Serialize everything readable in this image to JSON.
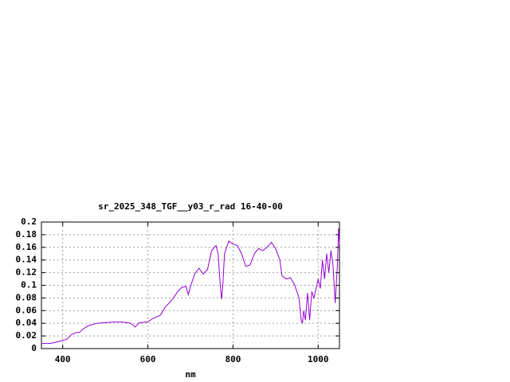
{
  "chart_data": {
    "type": "line",
    "title": "sr_2025_348_TGF__y03_r_rad 16-40-00",
    "xlabel": "nm",
    "x": [
      350,
      370,
      390,
      410,
      420,
      430,
      440,
      450,
      460,
      480,
      500,
      520,
      540,
      560,
      570,
      580,
      600,
      610,
      630,
      640,
      650,
      660,
      670,
      680,
      690,
      695,
      700,
      710,
      720,
      730,
      740,
      750,
      760,
      765,
      770,
      773,
      776,
      780,
      790,
      800,
      810,
      820,
      830,
      840,
      850,
      860,
      870,
      880,
      890,
      900,
      910,
      915,
      925,
      935,
      945,
      955,
      960,
      963,
      966,
      970,
      975,
      980,
      985,
      990,
      995,
      1000,
      1005,
      1010,
      1015,
      1020,
      1025,
      1030,
      1035,
      1040,
      1045,
      1048,
      1050
    ],
    "values": [
      0.008,
      0.008,
      0.011,
      0.015,
      0.022,
      0.025,
      0.026,
      0.032,
      0.036,
      0.04,
      0.041,
      0.042,
      0.042,
      0.04,
      0.034,
      0.041,
      0.042,
      0.047,
      0.053,
      0.065,
      0.072,
      0.08,
      0.09,
      0.097,
      0.098,
      0.085,
      0.098,
      0.118,
      0.127,
      0.118,
      0.125,
      0.155,
      0.163,
      0.15,
      0.1,
      0.078,
      0.1,
      0.15,
      0.17,
      0.165,
      0.163,
      0.15,
      0.13,
      0.132,
      0.15,
      0.158,
      0.155,
      0.16,
      0.168,
      0.158,
      0.14,
      0.115,
      0.11,
      0.112,
      0.1,
      0.08,
      0.045,
      0.04,
      0.06,
      0.045,
      0.088,
      0.045,
      0.09,
      0.08,
      0.095,
      0.11,
      0.095,
      0.14,
      0.11,
      0.15,
      0.12,
      0.155,
      0.13,
      0.072,
      0.13,
      0.19,
      0.165
    ],
    "color": "#9400d3",
    "xlim": [
      350,
      1050
    ],
    "ylim": [
      0,
      0.2
    ],
    "xticks": [
      400,
      600,
      800,
      1000
    ],
    "yticks": [
      0,
      0.02,
      0.04,
      0.06,
      0.08,
      0.1,
      0.12,
      0.14,
      0.16,
      0.18,
      0.2
    ],
    "grid": true
  }
}
